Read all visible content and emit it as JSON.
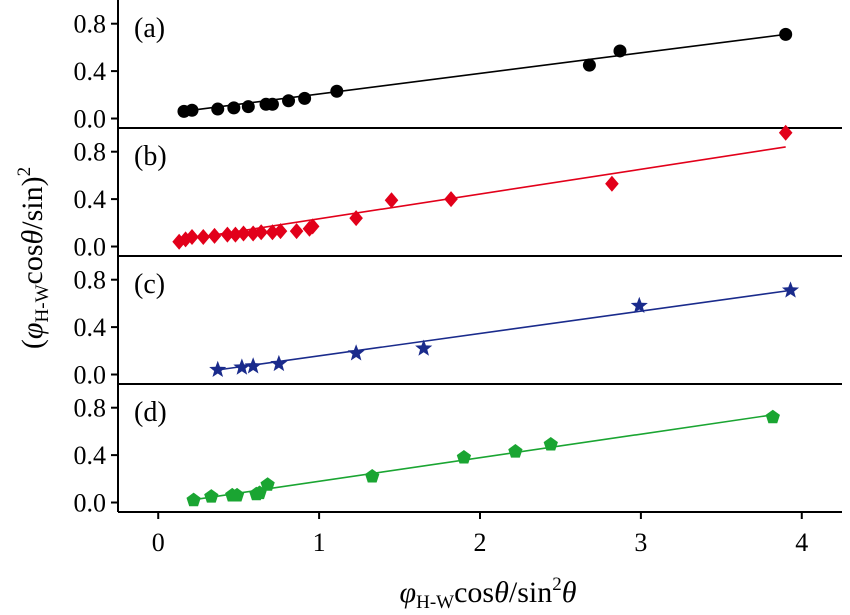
{
  "figure": {
    "ylabel_parts": [
      "(",
      "φ",
      "H-W",
      "cos",
      "θ",
      "/sin)",
      "2"
    ],
    "xlabel_parts": [
      "φ",
      "H-W",
      "cos",
      "θ",
      "/sin",
      "2",
      "θ"
    ]
  },
  "chart_data": [
    {
      "type": "scatter",
      "panel_label": "(a)",
      "color": "#000000",
      "marker": "circle",
      "xlim": [
        -0.25,
        4.25
      ],
      "ylim": [
        -0.08,
        1.0
      ],
      "yticks": [
        "0.0",
        "0.4",
        "0.8"
      ],
      "ytick_values": [
        0.0,
        0.4,
        0.8
      ],
      "fit_line": {
        "x": [
          0.15,
          3.9
        ],
        "y": [
          0.06,
          0.71
        ]
      },
      "points": {
        "x": [
          0.16,
          0.21,
          0.37,
          0.47,
          0.56,
          0.67,
          0.71,
          0.81,
          0.91,
          1.11,
          2.68,
          2.87,
          3.9
        ],
        "y": [
          0.06,
          0.07,
          0.08,
          0.09,
          0.1,
          0.12,
          0.12,
          0.15,
          0.17,
          0.23,
          0.45,
          0.57,
          0.71
        ]
      }
    },
    {
      "type": "scatter",
      "panel_label": "(b)",
      "color": "#e2001a",
      "marker": "diamond",
      "xlim": [
        -0.25,
        4.25
      ],
      "ylim": [
        -0.08,
        1.0
      ],
      "yticks": [
        "0.0",
        "0.4",
        "0.8"
      ],
      "ytick_values": [
        0.0,
        0.4,
        0.8
      ],
      "fit_line": {
        "x": [
          0.12,
          3.9
        ],
        "y": [
          0.05,
          0.84
        ]
      },
      "points": {
        "x": [
          0.13,
          0.17,
          0.21,
          0.28,
          0.35,
          0.43,
          0.48,
          0.53,
          0.59,
          0.64,
          0.71,
          0.76,
          0.86,
          0.94,
          0.96,
          1.23,
          1.45,
          1.82,
          2.82,
          3.9
        ],
        "y": [
          0.04,
          0.06,
          0.08,
          0.08,
          0.09,
          0.1,
          0.1,
          0.11,
          0.11,
          0.12,
          0.12,
          0.13,
          0.13,
          0.15,
          0.17,
          0.24,
          0.39,
          0.4,
          0.53,
          0.96
        ]
      }
    },
    {
      "type": "scatter",
      "panel_label": "(c)",
      "color": "#1a2b8c",
      "marker": "star",
      "xlim": [
        -0.25,
        4.25
      ],
      "ylim": [
        -0.08,
        1.0
      ],
      "yticks": [
        "0.0",
        "0.4",
        "0.8"
      ],
      "ytick_values": [
        0.0,
        0.4,
        0.8
      ],
      "fit_line": {
        "x": [
          0.35,
          3.93
        ],
        "y": [
          0.035,
          0.71
        ]
      },
      "points": {
        "x": [
          0.37,
          0.52,
          0.59,
          0.75,
          1.23,
          1.65,
          2.99,
          3.93
        ],
        "y": [
          0.04,
          0.06,
          0.07,
          0.09,
          0.18,
          0.22,
          0.58,
          0.71
        ]
      }
    },
    {
      "type": "scatter",
      "panel_label": "(d)",
      "color": "#1aa532",
      "marker": "pentagon",
      "xlim": [
        -0.25,
        4.25
      ],
      "ylim": [
        -0.08,
        1.0
      ],
      "yticks": [
        "0.0",
        "0.4",
        "0.8"
      ],
      "ytick_values": [
        0.0,
        0.4,
        0.8
      ],
      "fit_line": {
        "x": [
          0.2,
          3.82
        ],
        "y": [
          0.02,
          0.74
        ]
      },
      "points": {
        "x": [
          0.22,
          0.33,
          0.46,
          0.49,
          0.61,
          0.63,
          0.68,
          1.33,
          1.9,
          2.22,
          2.44,
          3.82
        ],
        "y": [
          0.02,
          0.05,
          0.06,
          0.06,
          0.07,
          0.08,
          0.15,
          0.22,
          0.38,
          0.43,
          0.49,
          0.72
        ]
      }
    }
  ],
  "x_axis": {
    "ticks": [
      "0",
      "1",
      "2",
      "3",
      "4"
    ],
    "tick_values": [
      0,
      1,
      2,
      3,
      4
    ]
  }
}
